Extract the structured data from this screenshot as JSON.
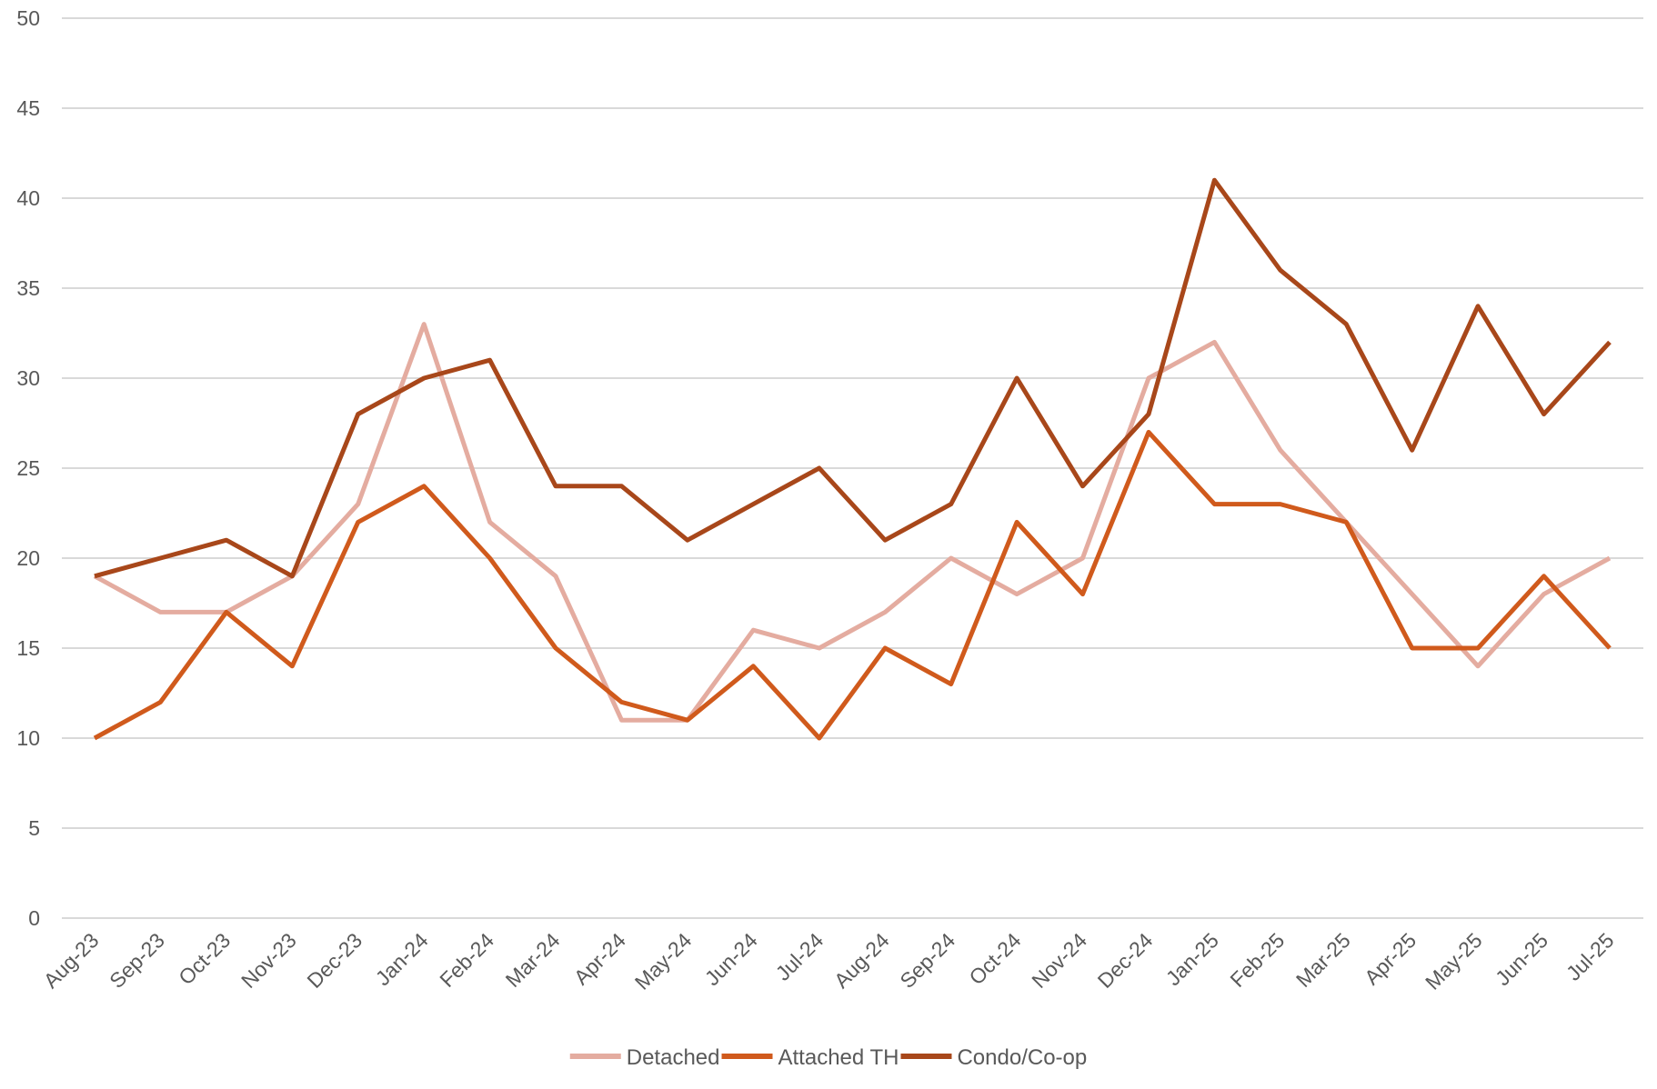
{
  "chart_data": {
    "type": "line",
    "title": "",
    "xlabel": "",
    "ylabel": "",
    "ylim": [
      0,
      50
    ],
    "y_ticks": [
      0,
      5,
      10,
      15,
      20,
      25,
      30,
      35,
      40,
      45,
      50
    ],
    "grid": true,
    "legend_position": "bottom-center",
    "categories": [
      "Aug-23",
      "Sep-23",
      "Oct-23",
      "Nov-23",
      "Dec-23",
      "Jan-24",
      "Feb-24",
      "Mar-24",
      "Apr-24",
      "May-24",
      "Jun-24",
      "Jul-24",
      "Aug-24",
      "Sep-24",
      "Oct-24",
      "Nov-24",
      "Dec-24",
      "Jan-25",
      "Feb-25",
      "Mar-25",
      "Apr-25",
      "May-25",
      "Jun-25",
      "Jul-25"
    ],
    "series": [
      {
        "name": "Detached",
        "color": "#e4aca0",
        "values": [
          19,
          17,
          17,
          19,
          23,
          33,
          22,
          19,
          11,
          11,
          16,
          15,
          17,
          20,
          18,
          20,
          30,
          32,
          26,
          22,
          18,
          14,
          18,
          20
        ]
      },
      {
        "name": "Attached TH",
        "color": "#d05a1c",
        "values": [
          10,
          12,
          17,
          14,
          22,
          24,
          20,
          15,
          12,
          11,
          14,
          10,
          15,
          13,
          22,
          18,
          27,
          23,
          23,
          22,
          15,
          15,
          19,
          15
        ]
      },
      {
        "name": "Condo/Co-op",
        "color": "#a8471a",
        "values": [
          19,
          20,
          21,
          19,
          28,
          30,
          31,
          24,
          24,
          21,
          23,
          25,
          21,
          23,
          30,
          24,
          28,
          41,
          36,
          33,
          26,
          34,
          28,
          32
        ]
      }
    ]
  }
}
